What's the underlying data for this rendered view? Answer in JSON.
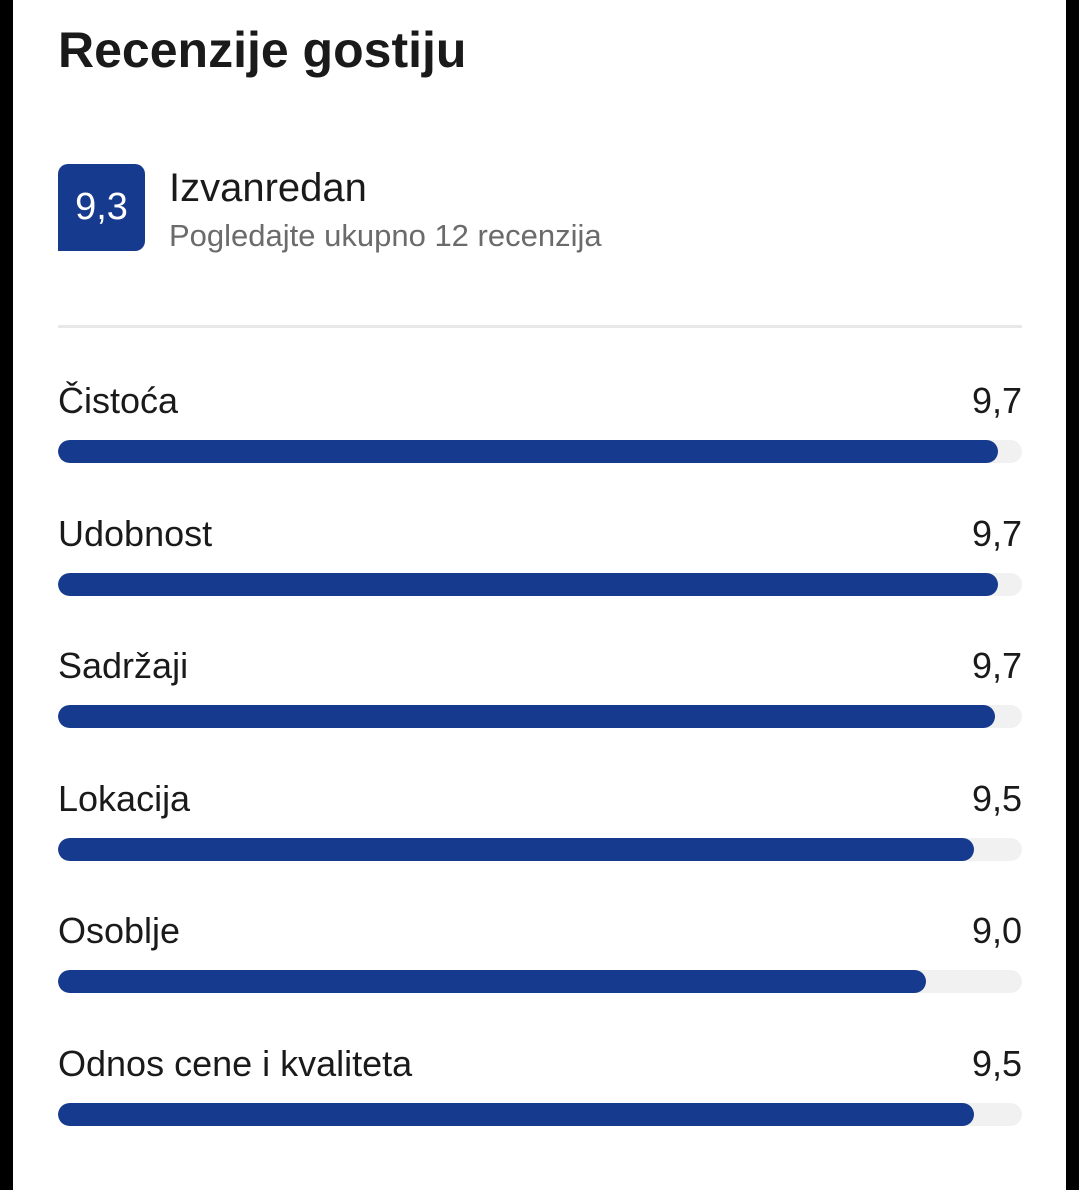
{
  "title": "Recenzije gostiju",
  "summary": {
    "score": "9,3",
    "verdict": "Izvanredan",
    "review_link": "Pogledajte ukupno 12 recenzija"
  },
  "categories": [
    {
      "name": "Čistoća",
      "score": "9,7",
      "bar_fraction": 0.975
    },
    {
      "name": "Udobnost",
      "score": "9,7",
      "bar_fraction": 0.975
    },
    {
      "name": "Sadržaji",
      "score": "9,7",
      "bar_fraction": 0.972
    },
    {
      "name": "Lokacija",
      "score": "9,5",
      "bar_fraction": 0.95
    },
    {
      "name": "Osoblje",
      "score": "9,0",
      "bar_fraction": 0.9
    },
    {
      "name": "Odnos cene i kvaliteta",
      "score": "9,5",
      "bar_fraction": 0.95
    }
  ],
  "colors": {
    "accent": "#163a8e",
    "track": "#f1f1f1",
    "text": "#1a1a1a",
    "muted_text": "#6b6b6b"
  }
}
